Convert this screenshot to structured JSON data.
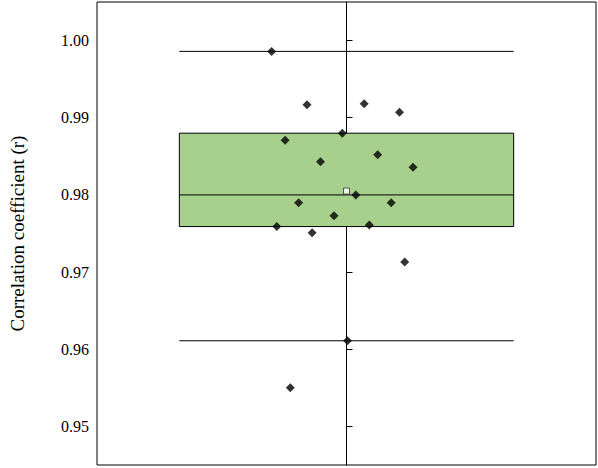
{
  "chart_data": {
    "type": "boxplot",
    "ylabel": "Correlation coefficient (r)",
    "ylim": [
      0.945,
      1.005
    ],
    "yticks": [
      0.95,
      0.96,
      0.97,
      0.98,
      0.99,
      {
        "value": 1,
        "label": "1.00"
      }
    ],
    "tick_labels": "y",
    "grid": false,
    "color": "#a8d08d",
    "marker": "diamond",
    "box": {
      "min": 0.9611,
      "q1": 0.9759,
      "median": 0.98,
      "q3": 0.988,
      "max": 0.9986,
      "mean": 0.9805
    },
    "values": [
      0.9986,
      0.9918,
      0.9917,
      0.9907,
      0.988,
      0.9871,
      0.9852,
      0.9843,
      0.9836,
      0.98,
      0.979,
      0.979,
      0.9773,
      0.9759,
      0.9761,
      0.9751,
      0.9713,
      0.9611,
      0.955
    ]
  }
}
